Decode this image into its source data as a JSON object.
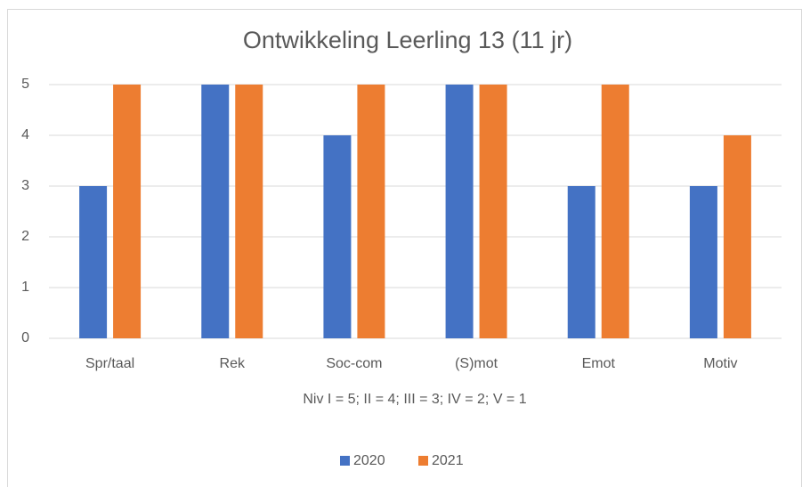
{
  "chart_data": {
    "type": "bar",
    "title": "Ontwikkeling Leerling 13 (11 jr)",
    "x_label": "Niv  I = 5; II = 4; III = 3; IV = 2; V = 1",
    "categories": [
      "Spr/taal",
      "Rek",
      "Soc-com",
      "(S)mot",
      "Emot",
      "Motiv"
    ],
    "series": [
      {
        "name": "2020",
        "color": "#4472c4",
        "values": [
          3,
          5,
          4,
          5,
          3,
          3
        ]
      },
      {
        "name": "2021",
        "color": "#ed7d31",
        "values": [
          5,
          5,
          5,
          5,
          5,
          4
        ]
      }
    ],
    "ylim": [
      0,
      5
    ],
    "yticks": [
      0,
      1,
      2,
      3,
      4,
      5
    ],
    "grid": true,
    "legend": "bottom"
  }
}
